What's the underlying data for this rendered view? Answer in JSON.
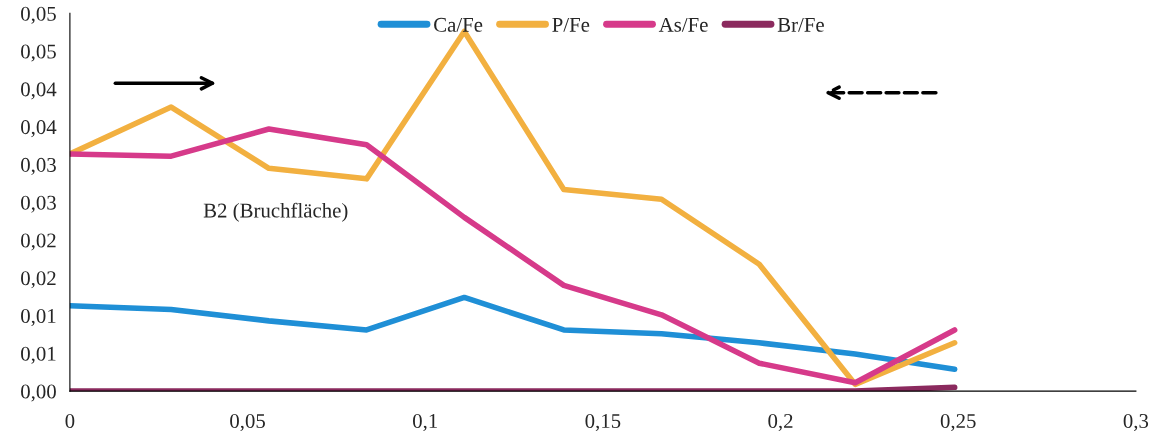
{
  "chart_data": {
    "type": "line",
    "legend": "top",
    "grid": false,
    "marker": "none",
    "line_style": "solid",
    "x": [
      0,
      0.0285,
      0.056,
      0.0835,
      0.111,
      0.139,
      0.1665,
      0.194,
      0.221,
      0.249
    ],
    "xlim": [
      0,
      0.3
    ],
    "xticks": [
      {
        "value": 0,
        "label": "0"
      },
      {
        "value": 0.05,
        "label": "0,05"
      },
      {
        "value": 0.1,
        "label": "0,1"
      },
      {
        "value": 0.15,
        "label": "0,15"
      },
      {
        "value": 0.2,
        "label": "0,2"
      },
      {
        "value": 0.25,
        "label": "0,25"
      },
      {
        "value": 0.3,
        "label": "0,3"
      }
    ],
    "ylim": [
      0,
      0.05
    ],
    "yticks": [
      {
        "value": 0,
        "label": "0,00"
      },
      {
        "value": 0.005,
        "label": "0,01"
      },
      {
        "value": 0.01,
        "label": "0,01"
      },
      {
        "value": 0.015,
        "label": "0,02"
      },
      {
        "value": 0.02,
        "label": "0,02"
      },
      {
        "value": 0.025,
        "label": "0,03"
      },
      {
        "value": 0.03,
        "label": "0,03"
      },
      {
        "value": 0.035,
        "label": "0,04"
      },
      {
        "value": 0.04,
        "label": "0,04"
      },
      {
        "value": 0.045,
        "label": "0,05"
      },
      {
        "value": 0.05,
        "label": "0,05"
      }
    ],
    "annotations": [
      "B2 (Bruchfläche)"
    ],
    "series": [
      {
        "name": "Ca/Fe",
        "color": "#1f8fd6",
        "values": [
          0.0113,
          0.0108,
          0.0093,
          0.0081,
          0.0124,
          0.0081,
          0.0076,
          0.0064,
          0.0049,
          0.0029
        ]
      },
      {
        "name": "P/Fe",
        "color": "#f2b040",
        "values": [
          0.0314,
          0.0376,
          0.0295,
          0.0281,
          0.0476,
          0.0267,
          0.0254,
          0.0168,
          0.0009,
          0.0064
        ]
      },
      {
        "name": "As/Fe",
        "color": "#d63a8a",
        "values": [
          0.0314,
          0.0311,
          0.0347,
          0.0326,
          0.023,
          0.014,
          0.0101,
          0.0037,
          0.0011,
          0.0081
        ]
      },
      {
        "name": "Br/Fe",
        "color": "#8b2a5e",
        "values": [
          0,
          0,
          0,
          0,
          0,
          0,
          0,
          0,
          0,
          0.0005
        ]
      }
    ]
  }
}
